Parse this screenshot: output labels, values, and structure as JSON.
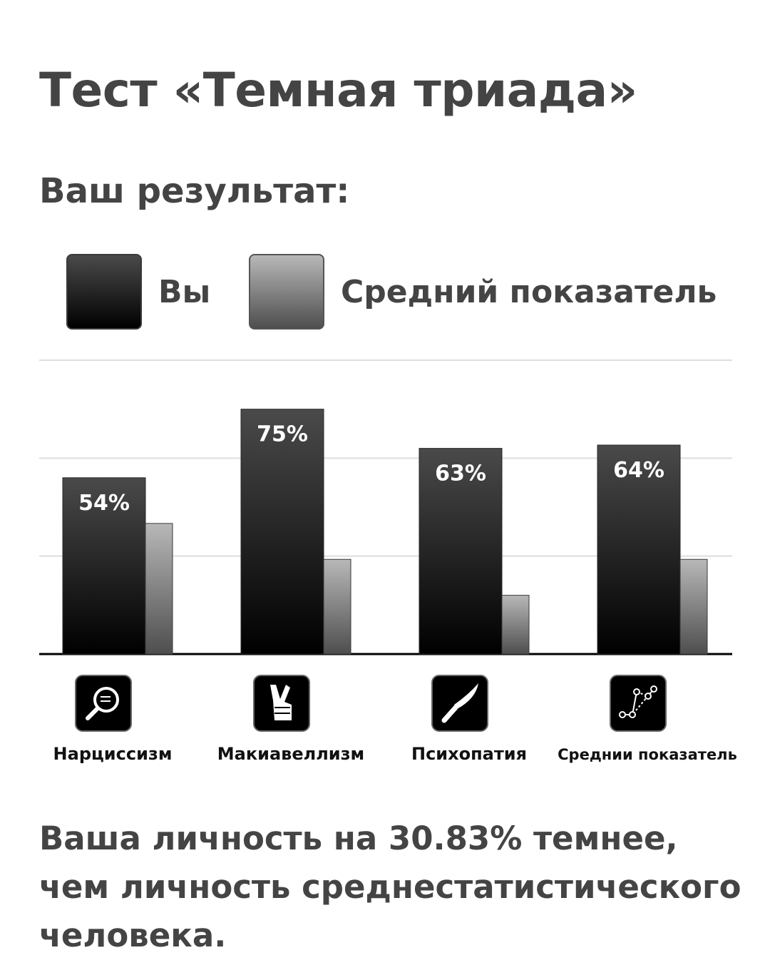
{
  "page": {
    "title": "Тест «Темная триада»",
    "subtitle": "Ваш результат:",
    "conclusion": "Ваша личность на 30.83% темнее, чем личность среднестатистического человека."
  },
  "legend": {
    "you": "Вы",
    "average": "Средний показатель"
  },
  "colors": {
    "text": "#444444",
    "you_top": "#4a4a4a",
    "you_bottom": "#000000",
    "avg_top": "#b8b8b8",
    "avg_bottom": "#4e4e4e",
    "grid": "#dddddd",
    "axis": "#000000"
  },
  "chart_data": {
    "type": "bar",
    "categories": [
      "Нарциссизм",
      "Макиавеллизм",
      "Психопатия",
      "Среднии показатель"
    ],
    "category_icons": [
      "magnifier-icon",
      "crossed-fingers-icon",
      "knife-icon",
      "constellation-icon"
    ],
    "series": [
      {
        "name": "Вы",
        "values": [
          54,
          75,
          63,
          64
        ],
        "labels": [
          "54%",
          "75%",
          "63%",
          "64%"
        ]
      },
      {
        "name": "Средний показатель",
        "values": [
          40,
          29,
          18,
          29
        ]
      }
    ],
    "ylim": [
      0,
      90
    ],
    "grid": true,
    "legend_position": "top"
  }
}
